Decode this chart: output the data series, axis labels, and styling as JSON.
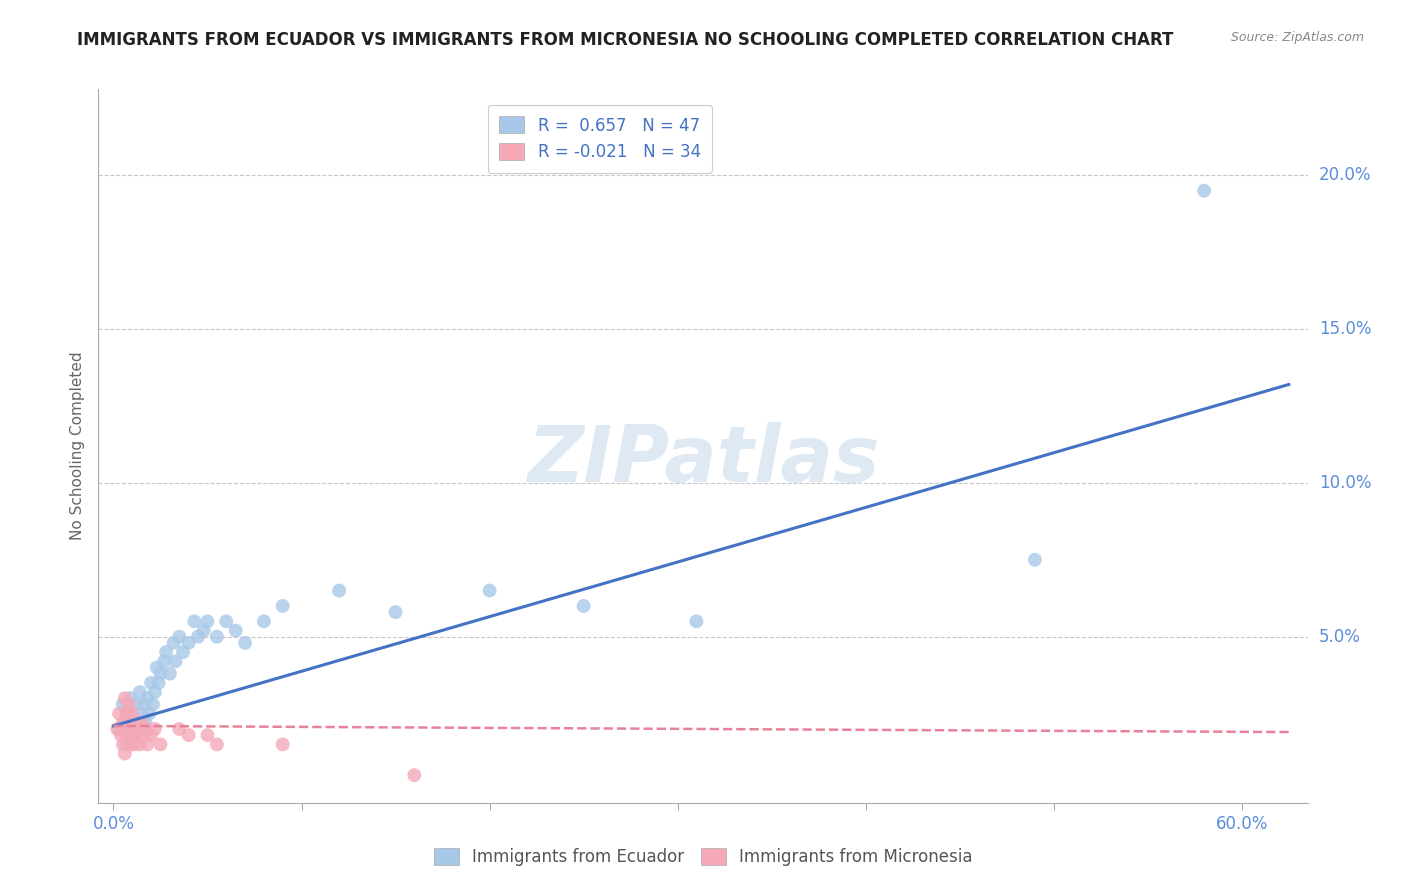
{
  "title": "IMMIGRANTS FROM ECUADOR VS IMMIGRANTS FROM MICRONESIA NO SCHOOLING COMPLETED CORRELATION CHART",
  "source": "Source: ZipAtlas.com",
  "ylabel_label": "No Schooling Completed",
  "x_ticks": [
    0.0,
    0.1,
    0.2,
    0.3,
    0.4,
    0.5,
    0.6
  ],
  "x_tick_labels": [
    "0.0%",
    "",
    "",
    "",
    "",
    "",
    "60.0%"
  ],
  "y_ticks": [
    0.0,
    0.05,
    0.1,
    0.15,
    0.2
  ],
  "y_tick_labels": [
    "",
    "5.0%",
    "10.0%",
    "15.0%",
    "20.0%"
  ],
  "xlim": [
    -0.008,
    0.635
  ],
  "ylim": [
    -0.004,
    0.228
  ],
  "ecuador_color": "#a8c8e8",
  "micronesia_color": "#f4a8b8",
  "ecuador_line_color": "#4472c4",
  "micronesia_line_color": "#e8829a",
  "R_ecuador": 0.657,
  "N_ecuador": 47,
  "R_micronesia": -0.021,
  "N_micronesia": 34,
  "ecuador_x": [
    0.003,
    0.005,
    0.006,
    0.007,
    0.008,
    0.009,
    0.01,
    0.011,
    0.012,
    0.013,
    0.014,
    0.015,
    0.016,
    0.017,
    0.018,
    0.019,
    0.02,
    0.021,
    0.022,
    0.023,
    0.024,
    0.025,
    0.027,
    0.028,
    0.03,
    0.032,
    0.033,
    0.035,
    0.037,
    0.04,
    0.043,
    0.045,
    0.048,
    0.05,
    0.055,
    0.06,
    0.065,
    0.07,
    0.08,
    0.09,
    0.12,
    0.15,
    0.2,
    0.25,
    0.31,
    0.49,
    0.58
  ],
  "ecuador_y": [
    0.02,
    0.028,
    0.022,
    0.015,
    0.025,
    0.03,
    0.018,
    0.022,
    0.028,
    0.02,
    0.032,
    0.025,
    0.028,
    0.022,
    0.03,
    0.025,
    0.035,
    0.028,
    0.032,
    0.04,
    0.035,
    0.038,
    0.042,
    0.045,
    0.038,
    0.048,
    0.042,
    0.05,
    0.045,
    0.048,
    0.055,
    0.05,
    0.052,
    0.055,
    0.05,
    0.055,
    0.052,
    0.048,
    0.055,
    0.06,
    0.065,
    0.058,
    0.065,
    0.06,
    0.055,
    0.075,
    0.195
  ],
  "micronesia_x": [
    0.002,
    0.003,
    0.004,
    0.005,
    0.005,
    0.006,
    0.006,
    0.007,
    0.007,
    0.008,
    0.008,
    0.009,
    0.009,
    0.01,
    0.01,
    0.011,
    0.011,
    0.012,
    0.012,
    0.013,
    0.014,
    0.015,
    0.016,
    0.017,
    0.018,
    0.02,
    0.022,
    0.025,
    0.035,
    0.04,
    0.05,
    0.055,
    0.09,
    0.16
  ],
  "micronesia_y": [
    0.02,
    0.025,
    0.018,
    0.022,
    0.015,
    0.03,
    0.012,
    0.025,
    0.018,
    0.02,
    0.028,
    0.015,
    0.022,
    0.018,
    0.025,
    0.02,
    0.015,
    0.022,
    0.018,
    0.02,
    0.015,
    0.022,
    0.018,
    0.02,
    0.015,
    0.018,
    0.02,
    0.015,
    0.02,
    0.018,
    0.018,
    0.015,
    0.015,
    0.005
  ],
  "ecuador_line_x0": 0.0,
  "ecuador_line_y0": 0.021,
  "ecuador_line_x1": 0.625,
  "ecuador_line_y1": 0.132,
  "micronesia_line_x0": 0.0,
  "micronesia_line_y0": 0.021,
  "micronesia_line_x1": 0.625,
  "micronesia_line_y1": 0.019,
  "watermark": "ZIPatlas",
  "background_color": "#ffffff",
  "grid_color": "#c8c8c8",
  "title_color": "#222222",
  "tick_color": "#5b8dd9",
  "axis_color": "#aaaaaa"
}
